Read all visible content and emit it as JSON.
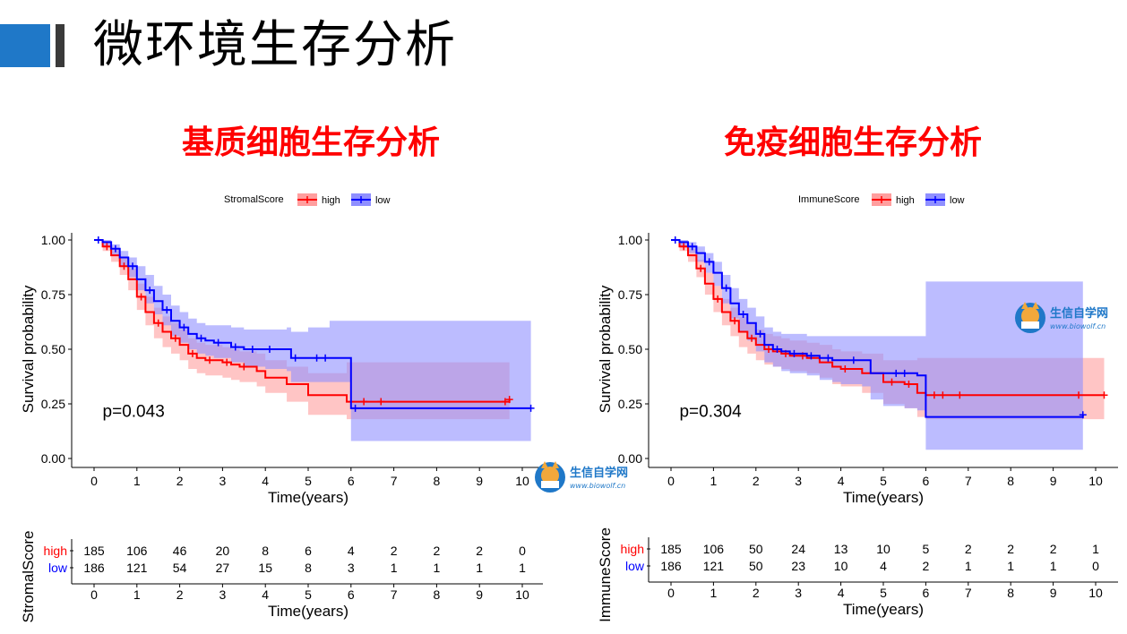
{
  "header": {
    "title": "微环境生存分析",
    "colors": {
      "accent_block": "#1f78c8",
      "dark_block": "#3a3a3a"
    }
  },
  "watermark": {
    "text": "生信自学网",
    "url": "www.biowolf.cn"
  },
  "colors": {
    "high": "#ff0000",
    "low": "#0000ff",
    "high_band": "#ff9e9e",
    "low_band": "#8f8fff"
  },
  "chart_data": [
    {
      "type": "line",
      "panel_title": "基质细胞生存分析",
      "legend_title": "StromalScore",
      "legend_position": "top",
      "xlabel": "Time(years)",
      "ylabel": "Survival probability",
      "xlim": [
        0,
        10
      ],
      "ylim": [
        0,
        1
      ],
      "xticks": [
        0,
        1,
        2,
        3,
        4,
        5,
        6,
        7,
        8,
        9,
        10
      ],
      "yticks": [
        0.0,
        0.25,
        0.5,
        0.75,
        1.0
      ],
      "ytick_labels": [
        "0.00",
        "0.25",
        "0.50",
        "0.75",
        "1.00"
      ],
      "pvalue": "p=0.043",
      "series": [
        {
          "name": "high",
          "x": [
            0,
            0.2,
            0.4,
            0.6,
            0.8,
            1.0,
            1.2,
            1.4,
            1.6,
            1.8,
            2.0,
            2.2,
            2.4,
            2.6,
            2.8,
            3.0,
            3.2,
            3.4,
            3.6,
            3.8,
            4.0,
            4.5,
            5.0,
            5.5,
            5.9,
            6.5,
            7.0,
            8.0,
            9.0,
            9.7
          ],
          "y": [
            1.0,
            0.97,
            0.93,
            0.88,
            0.82,
            0.74,
            0.67,
            0.62,
            0.58,
            0.55,
            0.52,
            0.48,
            0.46,
            0.45,
            0.45,
            0.44,
            0.43,
            0.42,
            0.42,
            0.4,
            0.37,
            0.34,
            0.29,
            0.29,
            0.26,
            0.26,
            0.26,
            0.26,
            0.26,
            0.27
          ],
          "upper": [
            1.0,
            0.99,
            0.96,
            0.92,
            0.87,
            0.8,
            0.74,
            0.69,
            0.65,
            0.62,
            0.59,
            0.55,
            0.53,
            0.52,
            0.52,
            0.51,
            0.5,
            0.49,
            0.49,
            0.48,
            0.45,
            0.42,
            0.39,
            0.39,
            0.44,
            0.44,
            0.44,
            0.44,
            0.44,
            0.44
          ],
          "lower": [
            1.0,
            0.95,
            0.9,
            0.84,
            0.77,
            0.68,
            0.61,
            0.55,
            0.51,
            0.48,
            0.45,
            0.41,
            0.39,
            0.38,
            0.38,
            0.37,
            0.36,
            0.35,
            0.35,
            0.33,
            0.3,
            0.26,
            0.2,
            0.2,
            0.18,
            0.18,
            0.18,
            0.18,
            0.18,
            0.18
          ],
          "censor_x": [
            0.3,
            0.7,
            1.1,
            1.5,
            1.9,
            2.3,
            2.7,
            3.1,
            3.5,
            6.3,
            6.7,
            9.6,
            9.7
          ]
        },
        {
          "name": "low",
          "x": [
            0,
            0.2,
            0.4,
            0.6,
            0.8,
            1.0,
            1.2,
            1.4,
            1.6,
            1.8,
            2.0,
            2.2,
            2.4,
            2.6,
            2.8,
            3.0,
            3.2,
            3.5,
            3.8,
            4.0,
            4.5,
            4.6,
            5.0,
            5.5,
            5.8,
            6.0,
            7.0,
            8.0,
            9.0,
            10.2
          ],
          "y": [
            1.0,
            0.99,
            0.96,
            0.92,
            0.88,
            0.82,
            0.77,
            0.72,
            0.68,
            0.63,
            0.6,
            0.57,
            0.55,
            0.54,
            0.53,
            0.53,
            0.51,
            0.5,
            0.5,
            0.5,
            0.5,
            0.46,
            0.46,
            0.46,
            0.46,
            0.23,
            0.23,
            0.23,
            0.23,
            0.23
          ],
          "upper": [
            1.0,
            1.0,
            0.98,
            0.95,
            0.92,
            0.88,
            0.84,
            0.79,
            0.75,
            0.7,
            0.67,
            0.64,
            0.62,
            0.61,
            0.61,
            0.61,
            0.6,
            0.59,
            0.59,
            0.59,
            0.6,
            0.58,
            0.6,
            0.63,
            0.63,
            0.63,
            0.63,
            0.63,
            0.63,
            0.63
          ],
          "lower": [
            1.0,
            0.97,
            0.93,
            0.88,
            0.83,
            0.77,
            0.71,
            0.66,
            0.61,
            0.56,
            0.53,
            0.5,
            0.48,
            0.47,
            0.46,
            0.46,
            0.44,
            0.42,
            0.42,
            0.41,
            0.4,
            0.35,
            0.35,
            0.35,
            0.35,
            0.08,
            0.08,
            0.08,
            0.08,
            0.08
          ],
          "censor_x": [
            0.1,
            0.5,
            0.9,
            1.3,
            1.7,
            2.1,
            2.5,
            2.9,
            3.3,
            3.7,
            4.1,
            4.7,
            5.2,
            5.4,
            6.1,
            10.2
          ]
        }
      ],
      "risk_table": {
        "title": "StromalScore",
        "rows": [
          {
            "label": "high",
            "values": [
              "185",
              "106",
              "46",
              "20",
              "8",
              "6",
              "4",
              "2",
              "2",
              "2",
              "0"
            ]
          },
          {
            "label": "low",
            "values": [
              "186",
              "121",
              "54",
              "27",
              "15",
              "8",
              "3",
              "1",
              "1",
              "1",
              "1"
            ]
          }
        ],
        "xlabel": "Time(years)"
      }
    },
    {
      "type": "line",
      "panel_title": "免疫细胞生存分析",
      "legend_title": "ImmuneScore",
      "legend_position": "top",
      "xlabel": "Time(years)",
      "ylabel": "Survival probability",
      "xlim": [
        0,
        10
      ],
      "ylim": [
        0,
        1
      ],
      "xticks": [
        0,
        1,
        2,
        3,
        4,
        5,
        6,
        7,
        8,
        9,
        10
      ],
      "yticks": [
        0.0,
        0.25,
        0.5,
        0.75,
        1.0
      ],
      "ytick_labels": [
        "0.00",
        "0.25",
        "0.50",
        "0.75",
        "1.00"
      ],
      "pvalue": "p=0.304",
      "series": [
        {
          "name": "high",
          "x": [
            0,
            0.2,
            0.4,
            0.6,
            0.8,
            1.0,
            1.2,
            1.4,
            1.6,
            1.8,
            2.0,
            2.2,
            2.4,
            2.6,
            2.8,
            3.0,
            3.2,
            3.5,
            3.8,
            4.0,
            4.5,
            5.0,
            5.5,
            5.8,
            6.0,
            6.5,
            7.0,
            8.0,
            9.0,
            10.2
          ],
          "y": [
            1.0,
            0.97,
            0.93,
            0.87,
            0.8,
            0.73,
            0.67,
            0.63,
            0.58,
            0.55,
            0.52,
            0.5,
            0.49,
            0.48,
            0.47,
            0.47,
            0.46,
            0.44,
            0.42,
            0.41,
            0.39,
            0.35,
            0.34,
            0.3,
            0.29,
            0.29,
            0.29,
            0.29,
            0.29,
            0.29
          ],
          "upper": [
            1.0,
            0.99,
            0.96,
            0.91,
            0.85,
            0.79,
            0.73,
            0.69,
            0.65,
            0.62,
            0.59,
            0.57,
            0.56,
            0.55,
            0.54,
            0.54,
            0.53,
            0.52,
            0.5,
            0.49,
            0.48,
            0.45,
            0.45,
            0.46,
            0.46,
            0.46,
            0.46,
            0.46,
            0.46,
            0.46
          ],
          "lower": [
            1.0,
            0.95,
            0.9,
            0.83,
            0.75,
            0.67,
            0.61,
            0.56,
            0.51,
            0.48,
            0.45,
            0.43,
            0.42,
            0.41,
            0.4,
            0.4,
            0.39,
            0.37,
            0.34,
            0.33,
            0.3,
            0.25,
            0.23,
            0.19,
            0.18,
            0.18,
            0.18,
            0.18,
            0.18,
            0.18
          ],
          "censor_x": [
            0.3,
            0.7,
            1.1,
            1.5,
            1.9,
            2.3,
            2.7,
            3.1,
            4.1,
            5.2,
            5.6,
            6.2,
            6.4,
            6.8,
            9.6,
            10.2
          ]
        },
        {
          "name": "low",
          "x": [
            0,
            0.2,
            0.4,
            0.6,
            0.8,
            1.0,
            1.2,
            1.4,
            1.6,
            1.8,
            2.0,
            2.2,
            2.4,
            2.6,
            2.8,
            3.0,
            3.2,
            3.5,
            3.8,
            4.0,
            4.5,
            4.7,
            5.0,
            5.5,
            5.8,
            6.0,
            7.0,
            8.0,
            9.0,
            9.7
          ],
          "y": [
            1.0,
            0.99,
            0.97,
            0.94,
            0.9,
            0.85,
            0.78,
            0.71,
            0.66,
            0.62,
            0.57,
            0.52,
            0.5,
            0.49,
            0.48,
            0.48,
            0.47,
            0.46,
            0.45,
            0.45,
            0.45,
            0.39,
            0.39,
            0.39,
            0.38,
            0.19,
            0.19,
            0.19,
            0.19,
            0.2
          ],
          "upper": [
            1.0,
            1.0,
            0.99,
            0.97,
            0.94,
            0.9,
            0.84,
            0.78,
            0.73,
            0.69,
            0.65,
            0.6,
            0.58,
            0.57,
            0.57,
            0.57,
            0.56,
            0.56,
            0.56,
            0.56,
            0.56,
            0.56,
            0.56,
            0.56,
            0.56,
            0.81,
            0.81,
            0.81,
            0.81,
            0.81
          ],
          "lower": [
            1.0,
            0.97,
            0.94,
            0.9,
            0.85,
            0.79,
            0.71,
            0.64,
            0.58,
            0.54,
            0.49,
            0.44,
            0.42,
            0.4,
            0.39,
            0.39,
            0.38,
            0.36,
            0.35,
            0.34,
            0.33,
            0.27,
            0.24,
            0.23,
            0.22,
            0.04,
            0.04,
            0.04,
            0.04,
            0.04
          ],
          "censor_x": [
            0.1,
            0.5,
            0.9,
            1.3,
            1.7,
            2.1,
            2.5,
            2.9,
            3.3,
            3.7,
            4.3,
            5.3,
            5.5,
            9.7
          ]
        }
      ],
      "risk_table": {
        "title": "ImmuneScore",
        "rows": [
          {
            "label": "high",
            "values": [
              "185",
              "106",
              "50",
              "24",
              "13",
              "10",
              "5",
              "2",
              "2",
              "2",
              "1"
            ]
          },
          {
            "label": "low",
            "values": [
              "186",
              "121",
              "50",
              "23",
              "10",
              "4",
              "2",
              "1",
              "1",
              "1",
              "0"
            ]
          }
        ],
        "xlabel": "Time(years)"
      }
    }
  ]
}
